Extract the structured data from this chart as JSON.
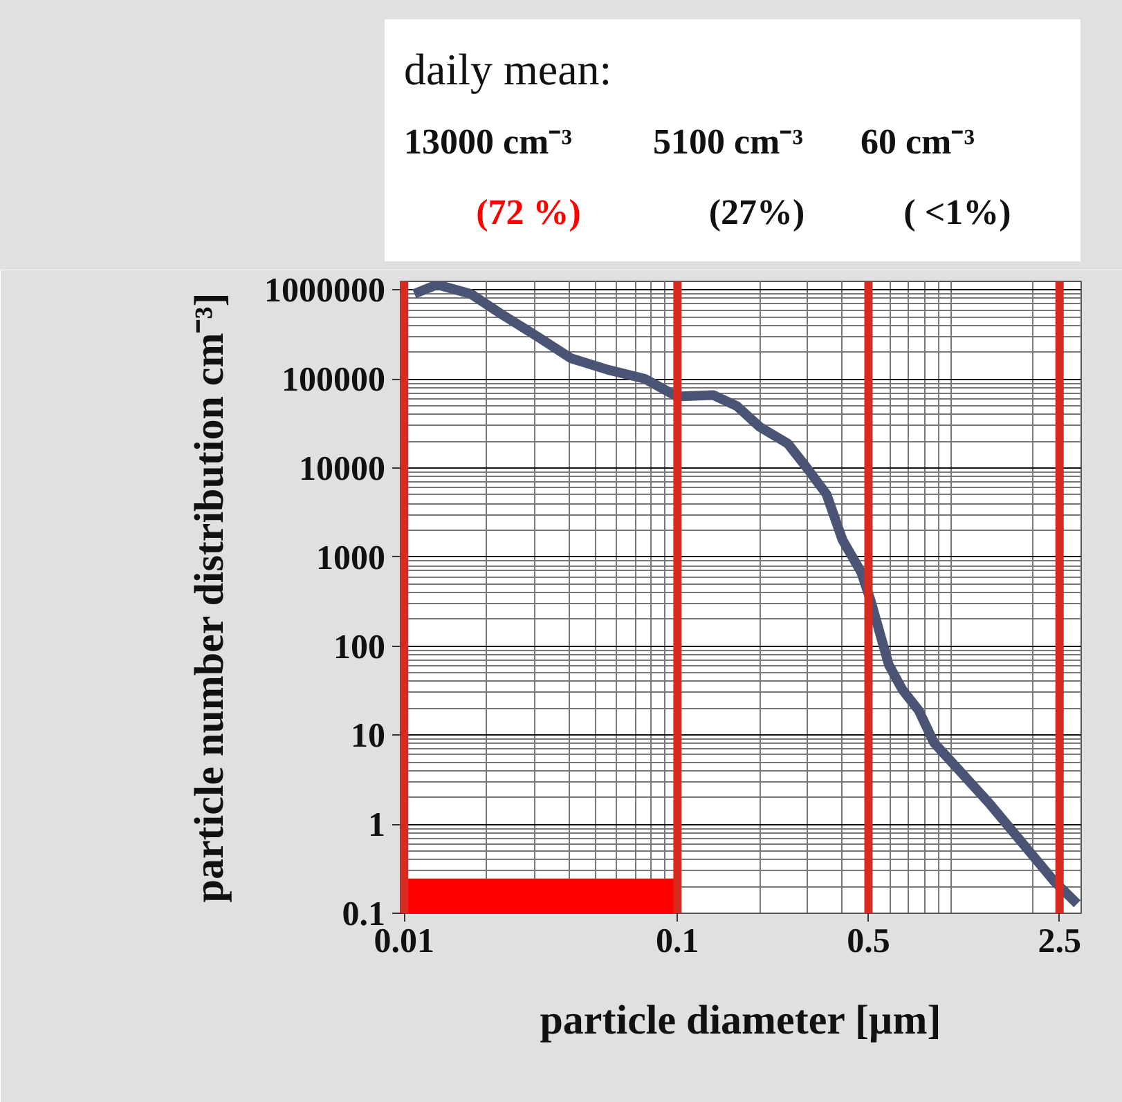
{
  "chart_data": {
    "type": "line",
    "xlabel": "particle diameter [µm]",
    "ylabel": "particle number distribution cm⁻³]",
    "annotations": [
      "daily mean:",
      "13000 cm⁻³",
      "5100 cm⁻³",
      "60 cm⁻³",
      "(72 %)",
      "(27%)",
      "( <1%)"
    ],
    "x": [
      0.0109,
      0.0132,
      0.0175,
      0.0228,
      0.0311,
      0.0408,
      0.0557,
      0.0757,
      0.0996,
      0.135,
      0.165,
      0.2,
      0.253,
      0.295,
      0.351,
      0.402,
      0.47,
      0.508,
      0.593,
      0.665,
      0.763,
      0.869,
      1.38,
      2.39,
      2.9
    ],
    "series": [
      {
        "color": "#4a5575",
        "values": [
          908000,
          1150000,
          908000,
          531000,
          293000,
          171000,
          127000,
          101000,
          63700,
          66100,
          49700,
          29000,
          18900,
          10400,
          5090,
          1550,
          679,
          333,
          62,
          32.5,
          19,
          8.2,
          1.73,
          0.229,
          0.128
        ]
      }
    ],
    "log": "xy",
    "xlim": [
      0.0097,
      3
    ],
    "ylim": [
      0.1,
      1250000
    ],
    "xticks": [
      0.01,
      0.1,
      0.5,
      2.5
    ],
    "yticks": [
      0.1,
      1,
      10,
      100,
      1000,
      10000,
      100000,
      1000000
    ],
    "grid": true,
    "line_style": "solid",
    "ref_lines": [
      {
        "axis": "x",
        "value": 0.01,
        "color": "#d92a20"
      },
      {
        "axis": "x",
        "value": 0.1,
        "color": "#d92a20"
      },
      {
        "axis": "x",
        "value": 0.5,
        "color": "#d92a20"
      },
      {
        "axis": "x",
        "value": 2.5,
        "color": "#d92a20"
      }
    ],
    "bands": [
      {
        "axis": "x",
        "from": 0.01,
        "to": 0.1,
        "color": "#ff0000"
      }
    ]
  }
}
